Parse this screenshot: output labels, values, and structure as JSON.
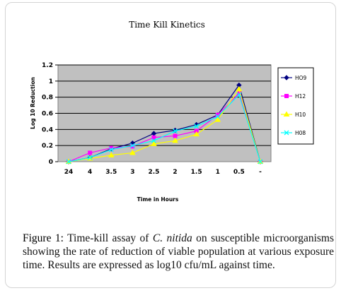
{
  "caption": {
    "label": "Figure 1:",
    "text_before": " Time-kill assay of ",
    "organism": "C. nitida",
    "text_after": " on susceptible microorganisms showing the rate of reduction of viable population at various exposure time. Results are expressed as log10 cfu/mL against time."
  },
  "chart_data": {
    "type": "line",
    "title": "Time  Kill Kinetics",
    "xlabel": "Time in Hours",
    "ylabel": "Log 10 Reduction",
    "categories": [
      "24",
      "4",
      "3.5",
      "3",
      "2.5",
      "2",
      "1.5",
      "1",
      "0.5",
      "-"
    ],
    "ylim": [
      0,
      1.2
    ],
    "yticks": [
      "0",
      "0.2",
      "0.4",
      "0.6",
      "0.8",
      "1",
      "1.2"
    ],
    "grid": true,
    "legend_position": "right",
    "plot_background": "#c0c0c0",
    "series": [
      {
        "name": "HO9",
        "color": "#000080",
        "marker": "diamond",
        "values": [
          0,
          0.05,
          0.16,
          0.23,
          0.35,
          0.39,
          0.46,
          0.58,
          0.95,
          0
        ]
      },
      {
        "name": "H12",
        "color": "#ff00ff",
        "marker": "square",
        "values": [
          0,
          0.11,
          0.17,
          0.19,
          0.3,
          0.32,
          0.38,
          0.58,
          0.85,
          0
        ]
      },
      {
        "name": "H10",
        "color": "#ffff00",
        "marker": "triangle",
        "values": [
          0,
          0.04,
          0.08,
          0.11,
          0.22,
          0.26,
          0.34,
          0.52,
          0.9,
          0
        ]
      },
      {
        "name": "H08",
        "color": "#00ffff",
        "marker": "x",
        "values": [
          0,
          0.05,
          0.15,
          0.2,
          0.26,
          0.38,
          0.44,
          0.56,
          0.83,
          0
        ]
      }
    ]
  }
}
